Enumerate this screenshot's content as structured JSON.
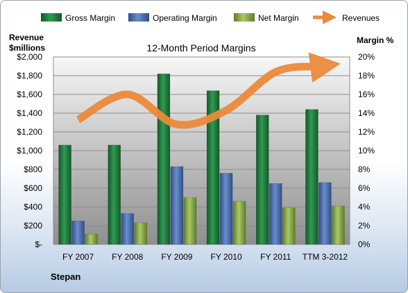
{
  "chart_data": {
    "type": "bar",
    "title": "12-Month Period Margins",
    "company": "Stepan",
    "categories": [
      "FY 2007",
      "FY 2008",
      "FY 2009",
      "FY 2010",
      "FY 2011",
      "TTM 3-2012"
    ],
    "series": [
      {
        "name": "Gross Margin",
        "type": "bar",
        "axis": "right",
        "color": "#1f7a3c",
        "values": [
          10.6,
          10.6,
          18.2,
          16.4,
          13.8,
          14.4
        ]
      },
      {
        "name": "Operating Margin",
        "type": "bar",
        "axis": "right",
        "color": "#4a6fae",
        "values": [
          2.5,
          3.3,
          8.3,
          7.6,
          6.5,
          6.6
        ]
      },
      {
        "name": "Net Margin",
        "type": "bar",
        "axis": "right",
        "color": "#8fb24a",
        "values": [
          1.1,
          2.3,
          5.0,
          4.6,
          3.9,
          4.1
        ]
      },
      {
        "name": "Revenues",
        "type": "line",
        "axis": "left",
        "color": "#ec8a3c",
        "values": [
          1330,
          1600,
          1280,
          1430,
          1840,
          1900
        ]
      }
    ],
    "left_axis": {
      "label_line1": "Revenue",
      "label_line2": "$millions",
      "range": [
        0,
        2000
      ],
      "ticks": [
        "$-",
        "$200",
        "$400",
        "$600",
        "$800",
        "$1,000",
        "$1,200",
        "$1,400",
        "$1,600",
        "$1,800",
        "$2,000"
      ]
    },
    "right_axis": {
      "label": "Margin %",
      "range": [
        0,
        20
      ],
      "ticks": [
        "0%",
        "2%",
        "4%",
        "6%",
        "8%",
        "10%",
        "12%",
        "14%",
        "16%",
        "18%",
        "20%"
      ]
    },
    "grid": true,
    "legend_position": "top"
  }
}
